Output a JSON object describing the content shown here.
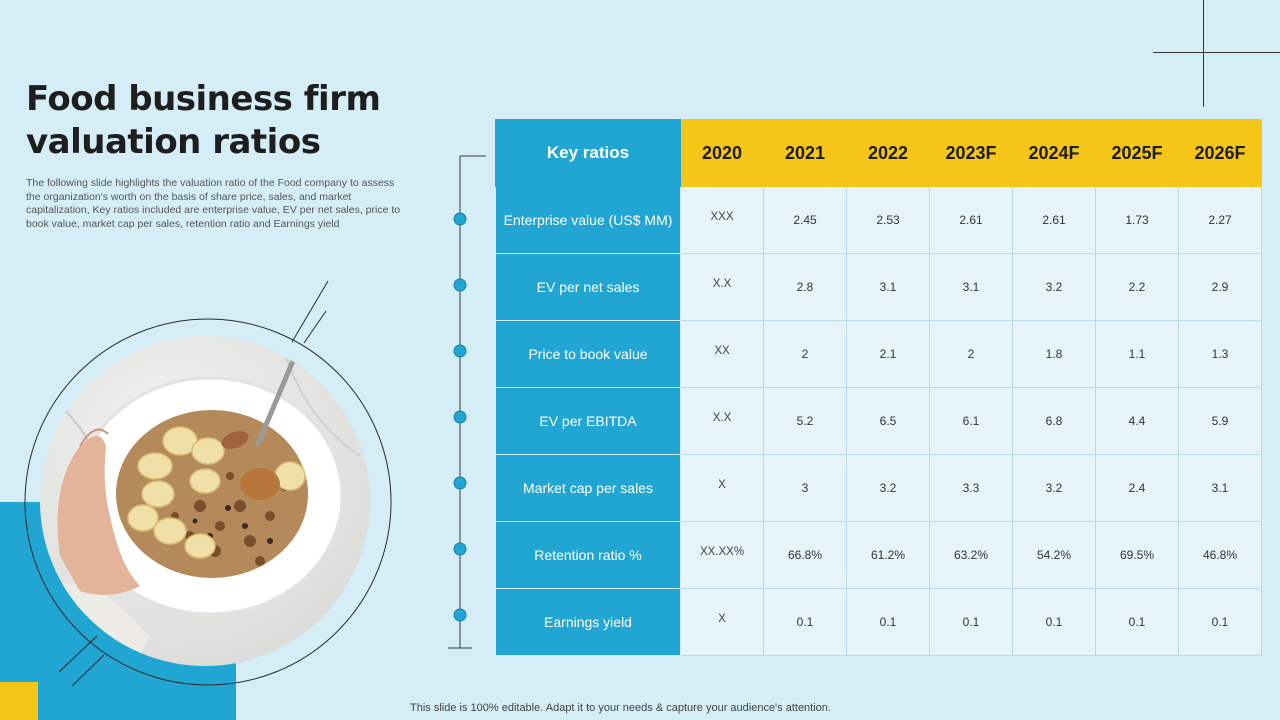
{
  "title": "Food business firm valuation ratios",
  "description": "The following slide highlights the valuation ratio of the Food company to assess the organization's worth on the basis of share price, sales, and market capitalization, Key ratios included are enterprise value, EV per net sales, price to book value, market cap per sales, retention ratio and Earnings yield",
  "footer": "This slide is 100% editable. Adapt it to your needs & capture your audience's attention.",
  "colors": {
    "accent_blue": "#21a5d2",
    "accent_yellow": "#f5c618",
    "background": "#d4edf7"
  },
  "table": {
    "header_label": "Key ratios",
    "years": [
      "2020",
      "2021",
      "2022",
      "2023F",
      "2024F",
      "2025F",
      "2026F"
    ],
    "rows": [
      {
        "label": "Enterprise value (US$ MM)",
        "values": [
          "XXX",
          "2.45",
          "2.53",
          "2.61",
          "2.61",
          "1.73",
          "2.27"
        ]
      },
      {
        "label": "EV per net sales",
        "values": [
          "X.X",
          "2.8",
          "3.1",
          "3.1",
          "3.2",
          "2.2",
          "2.9"
        ]
      },
      {
        "label": "Price to book value",
        "values": [
          "XX",
          "2",
          "2.1",
          "2",
          "1.8",
          "1.1",
          "1.3"
        ]
      },
      {
        "label": "EV per EBITDA",
        "values": [
          "X.X",
          "5.2",
          "6.5",
          "6.1",
          "6.8",
          "4.4",
          "5.9"
        ]
      },
      {
        "label": "Market cap per sales",
        "values": [
          "X",
          "3",
          "3.2",
          "3.3",
          "3.2",
          "2.4",
          "3.1"
        ]
      },
      {
        "label": "Retention ratio %",
        "values": [
          "XX.XX%",
          "66.8%",
          "61.2%",
          "63.2%",
          "54.2%",
          "69.5%",
          "46.8%"
        ]
      },
      {
        "label": "Earnings yield",
        "values": [
          "X",
          "0.1",
          "0.1",
          "0.1",
          "0.1",
          "0.1",
          "0.1"
        ]
      }
    ]
  }
}
